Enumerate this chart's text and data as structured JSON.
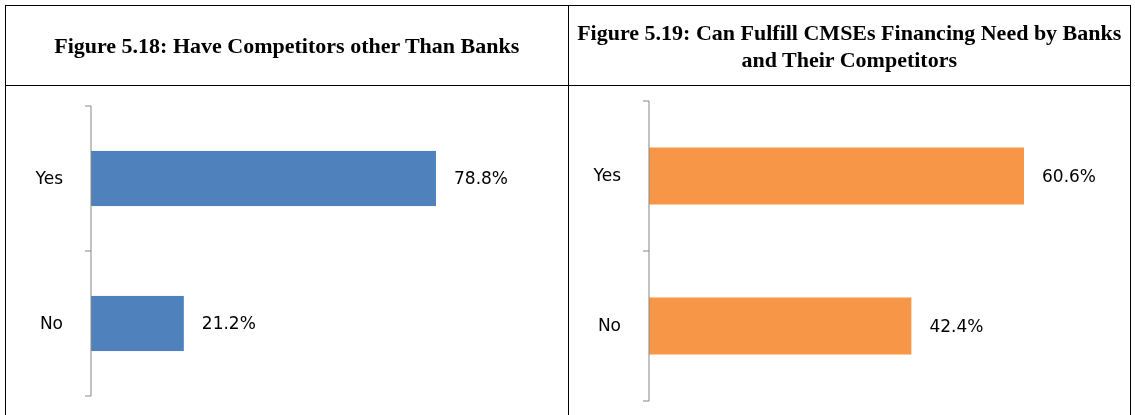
{
  "chart_data": [
    {
      "type": "bar",
      "orientation": "horizontal",
      "title": "Figure 5.18: Have Competitors other Than Banks",
      "categories": [
        "Yes",
        "No"
      ],
      "values": [
        78.8,
        21.2
      ],
      "color": "#4f81bd",
      "data_labels": true,
      "value_labels": [
        "78.8%",
        "21.2%"
      ]
    },
    {
      "type": "bar",
      "orientation": "horizontal",
      "title": "Figure 5.19: Can Fulfill CMSEs Financing Need by Banks and Their Competitors",
      "categories": [
        "Yes",
        "No"
      ],
      "values": [
        60.6,
        42.4
      ],
      "color": "#f79646",
      "data_labels": true,
      "value_labels": [
        "60.6%",
        "42.4%"
      ]
    }
  ]
}
